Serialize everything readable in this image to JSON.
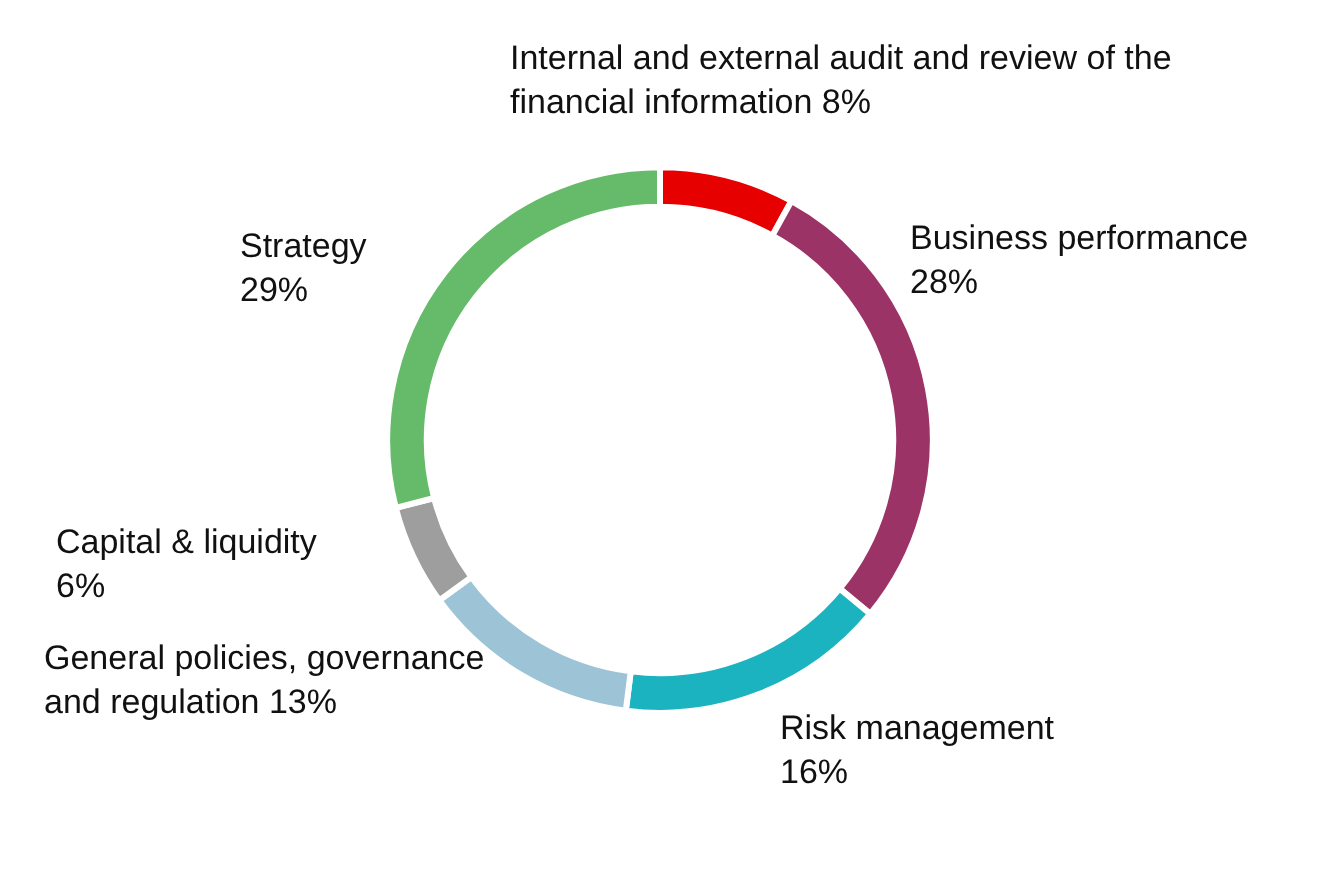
{
  "chart_data": {
    "type": "donut",
    "categories": [
      "Internal and external audit and review of the financial information",
      "Business performance",
      "Risk management",
      "General policies, governance and regulation",
      "Capital & liquidity",
      "Strategy"
    ],
    "values": [
      8,
      28,
      16,
      13,
      6,
      29
    ],
    "value_labels": [
      "8%",
      "28%",
      "16%",
      "13%",
      "6%",
      "29%"
    ],
    "colors": [
      "#e60000",
      "#9c3366",
      "#1ab3bf",
      "#9dc3d6",
      "#9e9e9e",
      "#66bb6a"
    ]
  }
}
